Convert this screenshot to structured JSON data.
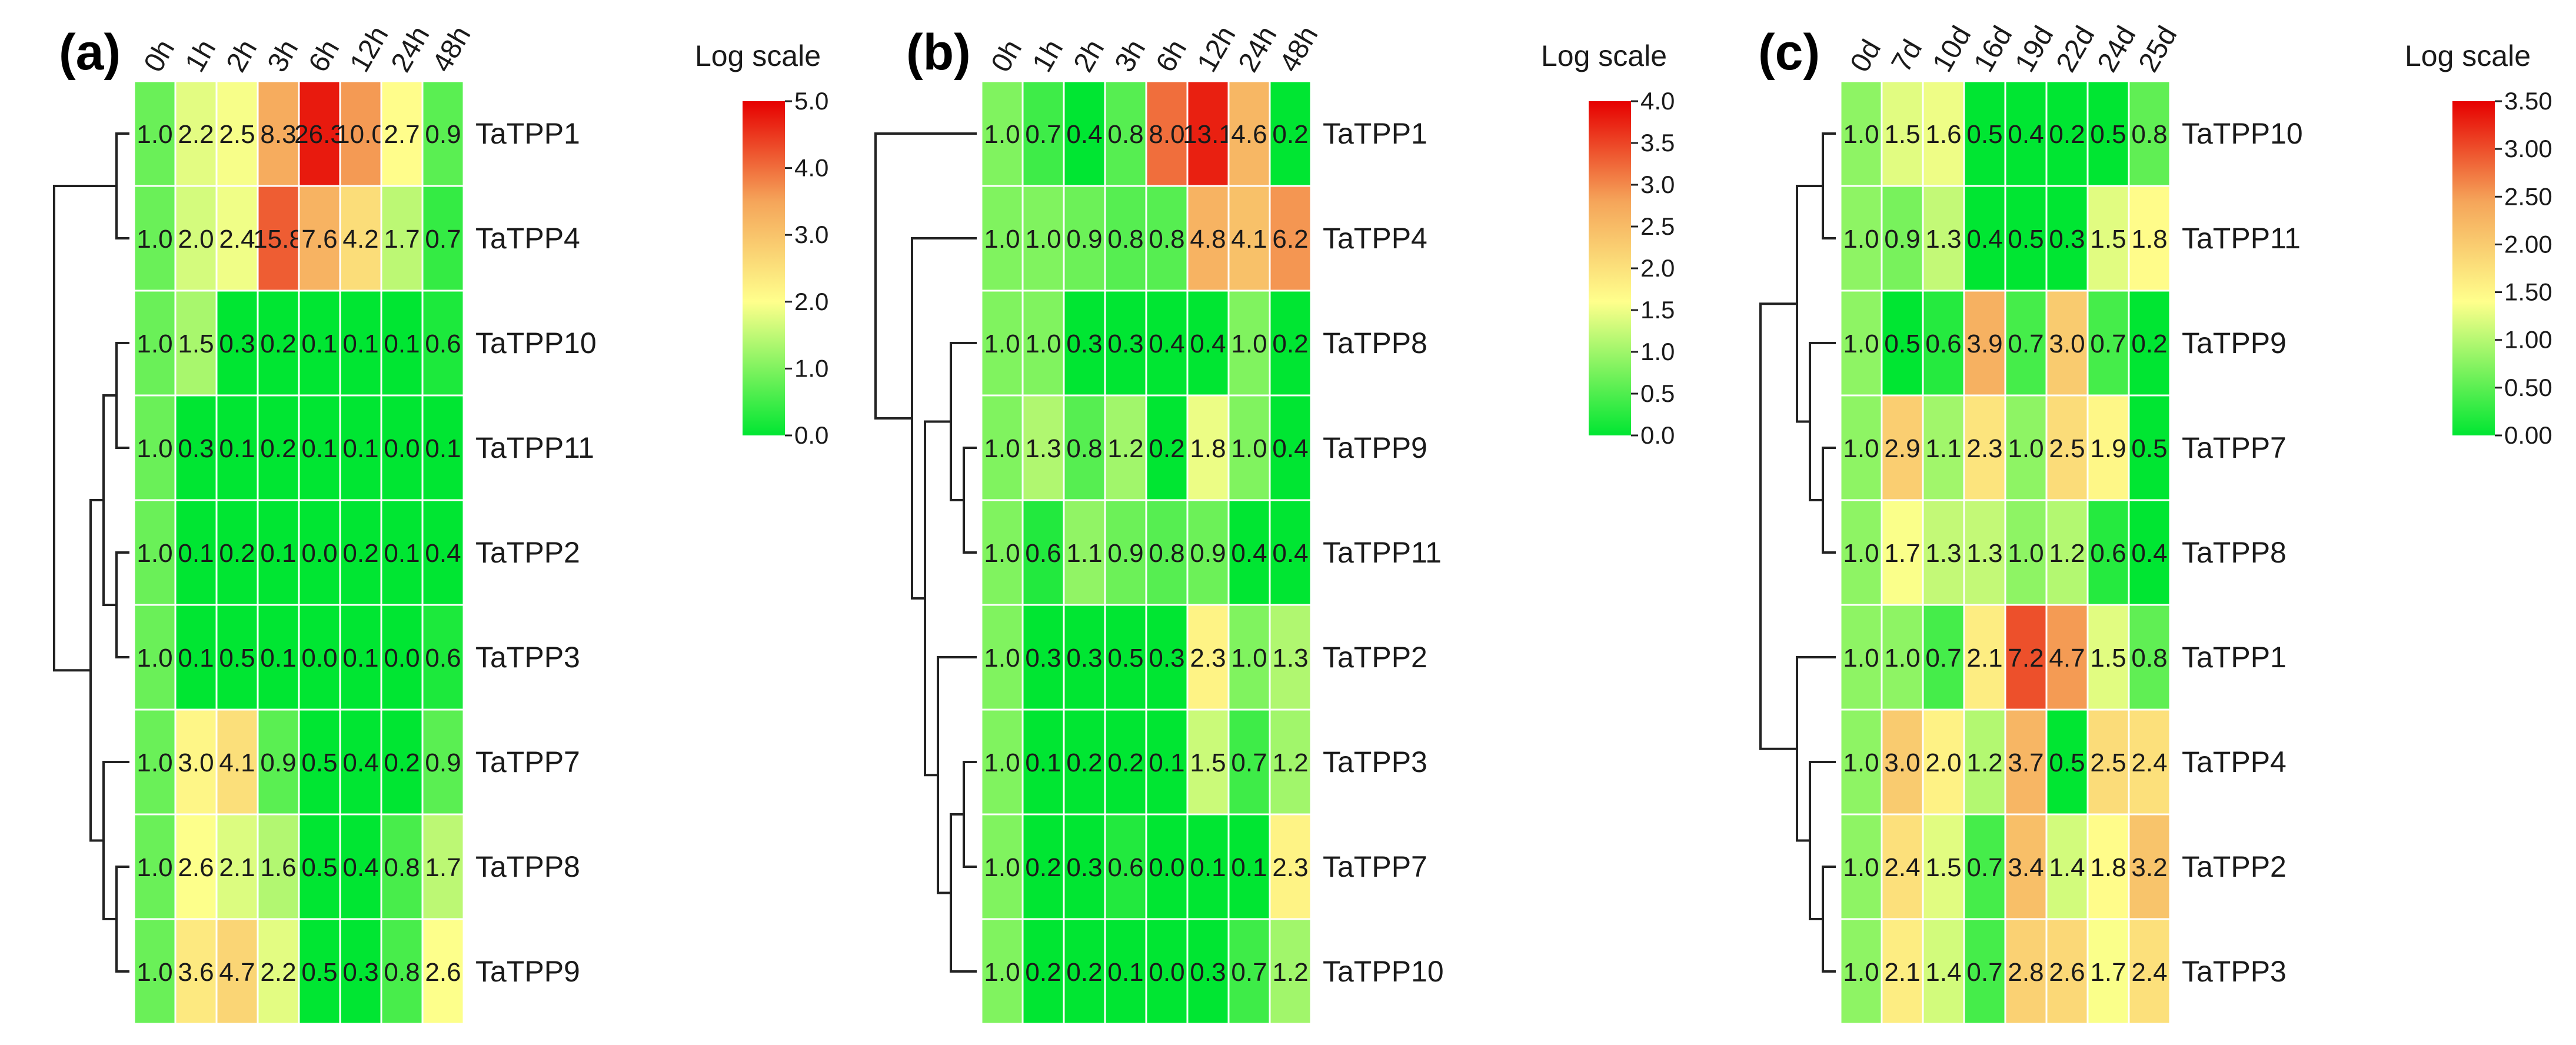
{
  "chart_data": [
    {
      "type": "heatmap",
      "panel_label": "(a)",
      "columns": [
        "0h",
        "1h",
        "2h",
        "3h",
        "6h",
        "12h",
        "24h",
        "48h"
      ],
      "rows": [
        "TaTPP1",
        "TaTPP4",
        "TaTPP10",
        "TaTPP11",
        "TaTPP2",
        "TaTPP3",
        "TaTPP7",
        "TaTPP8",
        "TaTPP9"
      ],
      "values": [
        [
          1.0,
          2.2,
          2.5,
          8.3,
          26.3,
          10.0,
          2.7,
          0.9
        ],
        [
          1.0,
          2.0,
          2.4,
          15.8,
          7.6,
          4.2,
          1.7,
          0.7
        ],
        [
          1.0,
          1.5,
          0.3,
          0.2,
          0.1,
          0.1,
          0.1,
          0.6
        ],
        [
          1.0,
          0.3,
          0.1,
          0.2,
          0.1,
          0.1,
          0.0,
          0.1
        ],
        [
          1.0,
          0.1,
          0.2,
          0.1,
          0.0,
          0.2,
          0.1,
          0.4
        ],
        [
          1.0,
          0.1,
          0.5,
          0.1,
          0.0,
          0.1,
          0.0,
          0.6
        ],
        [
          1.0,
          3.0,
          4.1,
          0.9,
          0.5,
          0.4,
          0.2,
          0.9
        ],
        [
          1.0,
          2.6,
          2.1,
          1.6,
          0.5,
          0.4,
          0.8,
          1.7
        ],
        [
          1.0,
          3.6,
          4.7,
          2.2,
          0.5,
          0.3,
          0.8,
          2.6
        ]
      ],
      "colorbar": {
        "title": "Log scale",
        "min": 0.0,
        "max": 5.0,
        "ticks": [
          "5.0",
          "4.0",
          "3.0",
          "2.0",
          "1.0",
          "0.0"
        ]
      },
      "dendrogram": "left"
    },
    {
      "type": "heatmap",
      "panel_label": "(b)",
      "columns": [
        "0h",
        "1h",
        "2h",
        "3h",
        "6h",
        "12h",
        "24h",
        "48h"
      ],
      "rows": [
        "TaTPP1",
        "TaTPP4",
        "TaTPP8",
        "TaTPP9",
        "TaTPP11",
        "TaTPP2",
        "TaTPP3",
        "TaTPP7",
        "TaTPP10"
      ],
      "values": [
        [
          1.0,
          0.7,
          0.4,
          0.8,
          8.0,
          13.1,
          4.6,
          0.2
        ],
        [
          1.0,
          1.0,
          0.9,
          0.8,
          0.8,
          4.8,
          4.1,
          6.2
        ],
        [
          1.0,
          1.0,
          0.3,
          0.3,
          0.4,
          0.4,
          1.0,
          0.2
        ],
        [
          1.0,
          1.3,
          0.8,
          1.2,
          0.2,
          1.8,
          1.0,
          0.4
        ],
        [
          1.0,
          0.6,
          1.1,
          0.9,
          0.8,
          0.9,
          0.4,
          0.4
        ],
        [
          1.0,
          0.3,
          0.3,
          0.5,
          0.3,
          2.3,
          1.0,
          1.3
        ],
        [
          1.0,
          0.1,
          0.2,
          0.2,
          0.1,
          1.5,
          0.7,
          1.2
        ],
        [
          1.0,
          0.2,
          0.3,
          0.6,
          0.0,
          0.1,
          0.1,
          2.3
        ],
        [
          1.0,
          0.2,
          0.2,
          0.1,
          0.0,
          0.3,
          0.7,
          1.2
        ]
      ],
      "colorbar": {
        "title": "Log scale",
        "min": 0.0,
        "max": 4.0,
        "ticks": [
          "4.0",
          "3.5",
          "3.0",
          "2.5",
          "2.0",
          "1.5",
          "1.0",
          "0.5",
          "0.0"
        ]
      },
      "dendrogram": "left"
    },
    {
      "type": "heatmap",
      "panel_label": "(c)",
      "columns": [
        "0d",
        "7d",
        "10d",
        "16d",
        "19d",
        "22d",
        "24d",
        "25d"
      ],
      "rows": [
        "TaTPP10",
        "TaTPP11",
        "TaTPP9",
        "TaTPP7",
        "TaTPP8",
        "TaTPP1",
        "TaTPP4",
        "TaTPP2",
        "TaTPP3"
      ],
      "values": [
        [
          1.0,
          1.5,
          1.6,
          0.5,
          0.4,
          0.2,
          0.5,
          0.8
        ],
        [
          1.0,
          0.9,
          1.3,
          0.4,
          0.5,
          0.3,
          1.5,
          1.8
        ],
        [
          1.0,
          0.5,
          0.6,
          3.9,
          0.7,
          3.0,
          0.7,
          0.2
        ],
        [
          1.0,
          2.9,
          1.1,
          2.3,
          1.0,
          2.5,
          1.9,
          0.5
        ],
        [
          1.0,
          1.7,
          1.3,
          1.3,
          1.0,
          1.2,
          0.6,
          0.4
        ],
        [
          1.0,
          1.0,
          0.7,
          2.1,
          7.2,
          4.7,
          1.5,
          0.8
        ],
        [
          1.0,
          3.0,
          2.0,
          1.2,
          3.7,
          0.5,
          2.5,
          2.4
        ],
        [
          1.0,
          2.4,
          1.5,
          0.7,
          3.4,
          1.4,
          1.8,
          3.2
        ],
        [
          1.0,
          2.1,
          1.4,
          0.7,
          2.8,
          2.6,
          1.7,
          2.4
        ]
      ],
      "colorbar": {
        "title": "Log scale",
        "min": 0.0,
        "max": 3.5,
        "ticks": [
          "3.50",
          "3.00",
          "2.50",
          "2.00",
          "1.50",
          "1.00",
          "0.50",
          "0.00"
        ]
      },
      "dendrogram": "left"
    }
  ],
  "colors": {
    "low": "#00e632",
    "mid": "#ffff8c",
    "high": "#e60000",
    "grid": "#ffffff"
  }
}
